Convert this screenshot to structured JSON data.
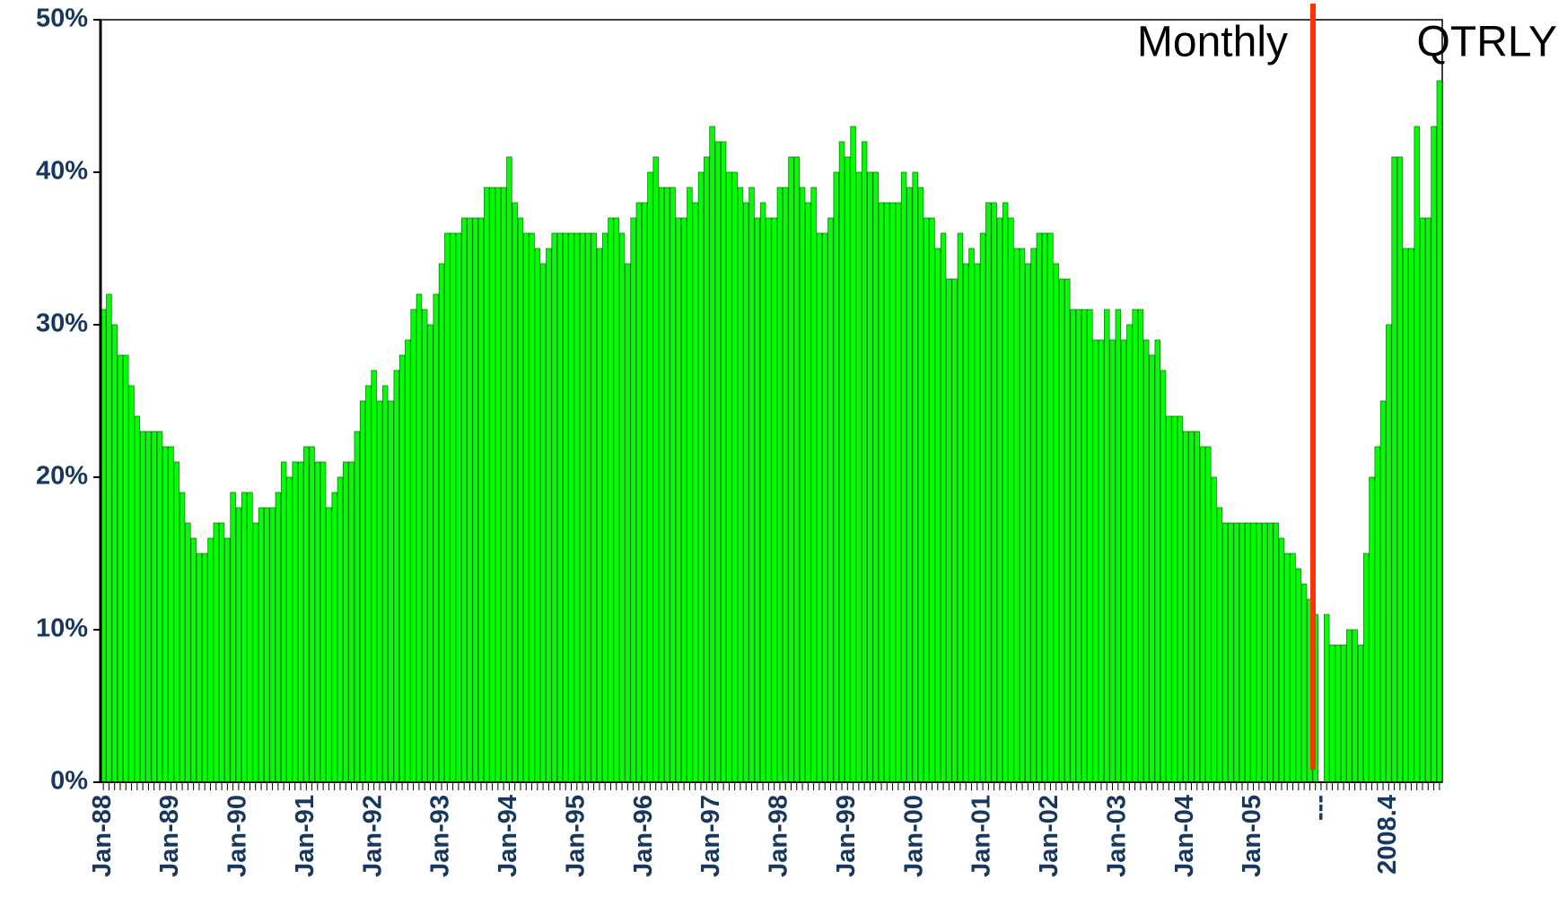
{
  "chart_data": {
    "type": "bar",
    "categories": [
      "Jan-88",
      null,
      null,
      null,
      null,
      null,
      null,
      null,
      null,
      null,
      null,
      null,
      "Jan-89",
      null,
      null,
      null,
      null,
      null,
      null,
      null,
      null,
      null,
      null,
      null,
      "Jan-90",
      null,
      null,
      null,
      null,
      null,
      null,
      null,
      null,
      null,
      null,
      null,
      "Jan-91",
      null,
      null,
      null,
      null,
      null,
      null,
      null,
      null,
      null,
      null,
      null,
      "Jan-92",
      null,
      null,
      null,
      null,
      null,
      null,
      null,
      null,
      null,
      null,
      null,
      "Jan-93",
      null,
      null,
      null,
      null,
      null,
      null,
      null,
      null,
      null,
      null,
      null,
      "Jan-94",
      null,
      null,
      null,
      null,
      null,
      null,
      null,
      null,
      null,
      null,
      null,
      "Jan-95",
      null,
      null,
      null,
      null,
      null,
      null,
      null,
      null,
      null,
      null,
      null,
      "Jan-96",
      null,
      null,
      null,
      null,
      null,
      null,
      null,
      null,
      null,
      null,
      null,
      "Jan-97",
      null,
      null,
      null,
      null,
      null,
      null,
      null,
      null,
      null,
      null,
      null,
      "Jan-98",
      null,
      null,
      null,
      null,
      null,
      null,
      null,
      null,
      null,
      null,
      null,
      "Jan-99",
      null,
      null,
      null,
      null,
      null,
      null,
      null,
      null,
      null,
      null,
      null,
      "Jan-00",
      null,
      null,
      null,
      null,
      null,
      null,
      null,
      null,
      null,
      null,
      null,
      "Jan-01",
      null,
      null,
      null,
      null,
      null,
      null,
      null,
      null,
      null,
      null,
      null,
      "Jan-02",
      null,
      null,
      null,
      null,
      null,
      null,
      null,
      null,
      null,
      null,
      null,
      "Jan-03",
      null,
      null,
      null,
      null,
      null,
      null,
      null,
      null,
      null,
      null,
      null,
      "Jan-04",
      null,
      null,
      null,
      null,
      null,
      null,
      null,
      null,
      null,
      null,
      null,
      "Jan-05",
      null,
      null,
      null,
      null,
      null,
      null,
      null,
      null,
      null,
      null,
      null,
      "---",
      null,
      null,
      null,
      null,
      null,
      null,
      null,
      null,
      null,
      null,
      null,
      "2008.4",
      null,
      null,
      null,
      null,
      null,
      null,
      null,
      null,
      null
    ],
    "values": [
      31,
      32,
      30,
      28,
      28,
      26,
      24,
      23,
      23,
      23,
      23,
      22,
      22,
      21,
      19,
      17,
      16,
      15,
      15,
      16,
      17,
      17,
      16,
      19,
      18,
      19,
      19,
      17,
      18,
      18,
      18,
      19,
      21,
      20,
      21,
      21,
      22,
      22,
      21,
      21,
      18,
      19,
      20,
      21,
      21,
      23,
      25,
      26,
      27,
      25,
      26,
      25,
      27,
      28,
      29,
      31,
      32,
      31,
      30,
      32,
      34,
      36,
      36,
      36,
      37,
      37,
      37,
      37,
      39,
      39,
      39,
      39,
      41,
      38,
      37,
      36,
      36,
      35,
      34,
      35,
      36,
      36,
      36,
      36,
      36,
      36,
      36,
      36,
      35,
      36,
      37,
      37,
      36,
      34,
      37,
      38,
      38,
      40,
      41,
      39,
      39,
      39,
      37,
      37,
      39,
      38,
      40,
      41,
      43,
      42,
      42,
      40,
      40,
      39,
      38,
      39,
      37,
      38,
      37,
      37,
      39,
      39,
      41,
      41,
      39,
      38,
      39,
      36,
      36,
      37,
      40,
      42,
      41,
      43,
      40,
      42,
      40,
      40,
      38,
      38,
      38,
      38,
      40,
      39,
      40,
      39,
      37,
      37,
      35,
      36,
      33,
      33,
      36,
      34,
      35,
      34,
      36,
      38,
      38,
      37,
      38,
      37,
      35,
      35,
      34,
      35,
      36,
      36,
      36,
      34,
      33,
      33,
      31,
      31,
      31,
      31,
      29,
      29,
      31,
      29,
      31,
      29,
      30,
      31,
      31,
      29,
      28,
      29,
      27,
      24,
      24,
      24,
      23,
      23,
      23,
      22,
      22,
      20,
      18,
      17,
      17,
      17,
      17,
      17,
      17,
      17,
      17,
      17,
      17,
      16,
      15,
      15,
      14,
      13,
      12,
      11,
      null,
      11,
      9,
      9,
      9,
      10,
      10,
      9,
      15,
      20,
      22,
      25,
      30,
      41,
      41,
      35,
      35,
      43,
      37,
      37,
      43,
      46
    ],
    "color": "#00ff00",
    "ylim": [
      0,
      50
    ],
    "yticks": [
      {
        "value": 0,
        "label": "0%"
      },
      {
        "value": 10,
        "label": "10%"
      },
      {
        "value": 20,
        "label": "20%"
      },
      {
        "value": 30,
        "label": "30%"
      },
      {
        "value": 40,
        "label": "40%"
      },
      {
        "value": 50,
        "label": "50%"
      }
    ],
    "annotations": [
      "Monthly",
      "QTRLY"
    ]
  }
}
